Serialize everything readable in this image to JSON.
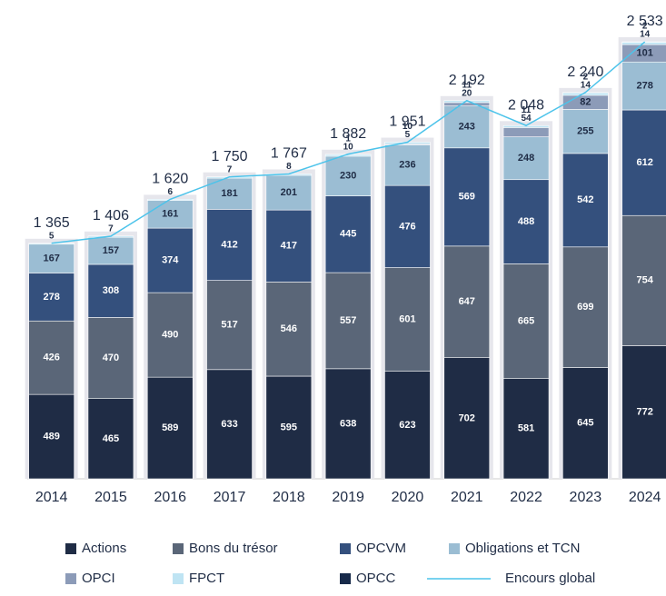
{
  "chart_data": {
    "type": "stacked-bar-line",
    "categories": [
      "2014",
      "2015",
      "2016",
      "2017",
      "2018",
      "2019",
      "2020",
      "2021",
      "2022",
      "2023",
      "2024"
    ],
    "series": [
      {
        "name": "Actions",
        "color": "#1f2c45",
        "values": [
          489,
          465,
          589,
          633,
          595,
          638,
          623,
          702,
          581,
          645,
          772
        ]
      },
      {
        "name": "Bons du trésor",
        "color": "#5a6678",
        "values": [
          426,
          470,
          490,
          517,
          546,
          557,
          601,
          647,
          665,
          699,
          754
        ]
      },
      {
        "name": "OPCVM",
        "color": "#34507d",
        "values": [
          278,
          308,
          374,
          412,
          417,
          445,
          476,
          569,
          488,
          542,
          612
        ]
      },
      {
        "name": "Obligations et TCN",
        "color": "#9bbdd3",
        "values": [
          167,
          157,
          161,
          181,
          201,
          230,
          236,
          243,
          248,
          255,
          278
        ]
      },
      {
        "name": "OPCI",
        "color": "#8c9bb8",
        "values": [
          null,
          null,
          null,
          null,
          null,
          null,
          5,
          20,
          54,
          82,
          101
        ]
      },
      {
        "name": "FPCT",
        "color": "#bfe4f3",
        "values": [
          5,
          7,
          6,
          7,
          8,
          10,
          10,
          11,
          11,
          14,
          14
        ]
      },
      {
        "name": "OPCC",
        "color": "#172a4a",
        "values": [
          null,
          null,
          null,
          null,
          null,
          1,
          null,
          null,
          null,
          2,
          2
        ]
      }
    ],
    "line": {
      "name": "Encours global",
      "color": "#4cc3ea",
      "values": [
        1365,
        1406,
        1620,
        1750,
        1767,
        1882,
        1951,
        2192,
        2048,
        2240,
        2533
      ],
      "value_labels": [
        "1 365",
        "1 406",
        "1 620",
        "1 750",
        "1 767",
        "1 882",
        "1 951",
        "2 192",
        "2 048",
        "2 240",
        "2 533"
      ]
    },
    "ylim": [
      0,
      2670
    ]
  }
}
